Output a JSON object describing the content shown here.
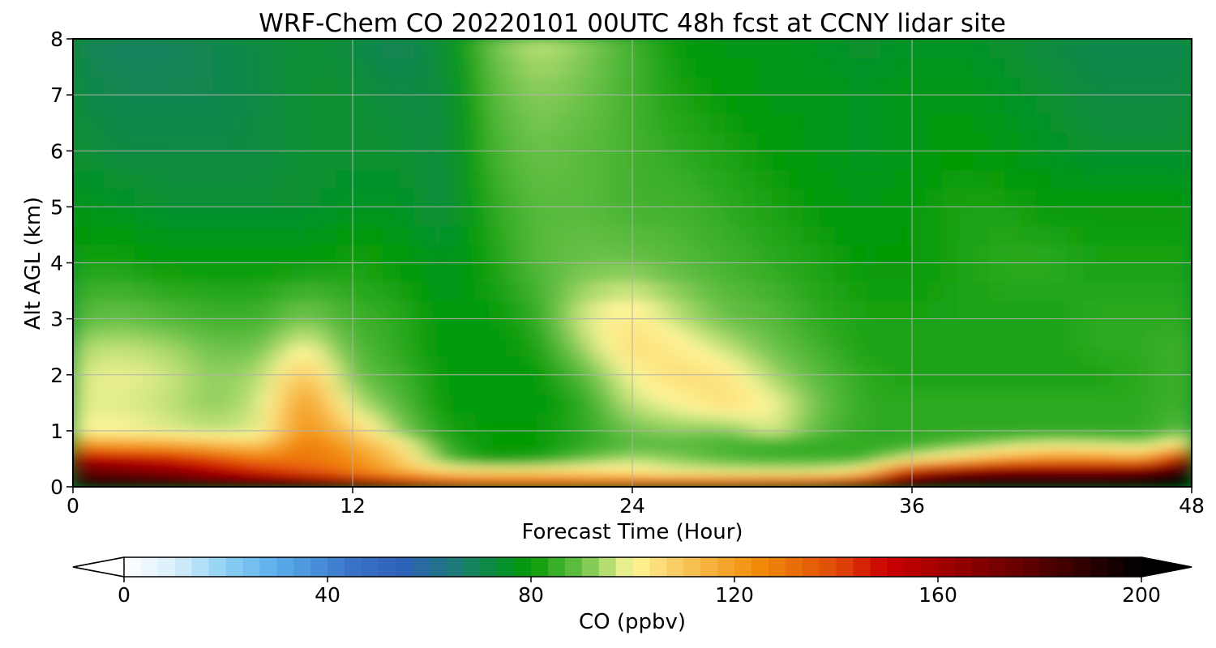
{
  "chart_data": {
    "type": "heatmap",
    "title": "WRF-Chem CO  20220101 00UTC 48h fcst at CCNY lidar site",
    "xlabel": "Forecast Time (Hour)",
    "ylabel": "Alt AGL (km)",
    "xlim": [
      0,
      48
    ],
    "ylim": [
      0,
      8
    ],
    "xticks": [
      0,
      12,
      24,
      36,
      48
    ],
    "yticks": [
      0,
      1,
      2,
      3,
      4,
      5,
      6,
      7,
      8
    ],
    "grid": true,
    "x": [
      0,
      2,
      4,
      6,
      8,
      10,
      12,
      14,
      16,
      18,
      20,
      22,
      24,
      26,
      28,
      30,
      32,
      34,
      36,
      38,
      40,
      42,
      44,
      46,
      48
    ],
    "y": [
      0,
      0.25,
      0.5,
      0.75,
      1,
      1.5,
      2,
      2.5,
      3,
      4,
      5,
      6,
      7,
      8
    ],
    "values": [
      [
        200,
        200,
        200,
        200,
        200,
        200,
        190,
        175,
        160,
        150,
        150,
        150,
        155,
        160,
        160,
        165,
        170,
        190,
        200,
        200,
        200,
        200,
        200,
        200,
        200
      ],
      [
        180,
        175,
        170,
        160,
        150,
        140,
        130,
        118,
        110,
        110,
        110,
        108,
        105,
        100,
        100,
        100,
        100,
        110,
        160,
        175,
        180,
        180,
        180,
        185,
        200
      ],
      [
        160,
        155,
        150,
        140,
        130,
        130,
        125,
        110,
        88,
        80,
        82,
        90,
        95,
        92,
        88,
        86,
        86,
        86,
        100,
        110,
        120,
        125,
        125,
        120,
        165
      ],
      [
        125,
        120,
        120,
        115,
        110,
        130,
        118,
        105,
        84,
        80,
        80,
        84,
        88,
        88,
        86,
        85,
        84,
        84,
        85,
        90,
        95,
        100,
        98,
        95,
        110
      ],
      [
        100,
        100,
        98,
        96,
        98,
        125,
        110,
        92,
        82,
        80,
        80,
        84,
        90,
        92,
        90,
        98,
        88,
        84,
        84,
        84,
        84,
        84,
        84,
        84,
        90
      ],
      [
        98,
        98,
        96,
        92,
        96,
        122,
        96,
        88,
        80,
        79,
        79,
        84,
        96,
        100,
        106,
        100,
        90,
        84,
        84,
        84,
        84,
        84,
        84,
        84,
        86
      ],
      [
        97,
        99,
        97,
        92,
        94,
        112,
        90,
        86,
        80,
        79,
        80,
        88,
        100,
        106,
        104,
        94,
        88,
        84,
        82,
        82,
        82,
        82,
        82,
        84,
        86
      ],
      [
        94,
        96,
        94,
        90,
        90,
        100,
        88,
        84,
        79,
        79,
        82,
        94,
        106,
        102,
        96,
        90,
        86,
        82,
        82,
        82,
        82,
        82,
        84,
        84,
        86
      ],
      [
        88,
        90,
        88,
        86,
        86,
        92,
        86,
        84,
        79,
        80,
        84,
        98,
        104,
        96,
        90,
        88,
        84,
        82,
        82,
        82,
        82,
        82,
        84,
        84,
        84
      ],
      [
        82,
        82,
        80,
        80,
        80,
        80,
        82,
        80,
        76,
        82,
        88,
        90,
        90,
        88,
        86,
        84,
        82,
        80,
        80,
        82,
        84,
        84,
        82,
        82,
        82
      ],
      [
        78,
        76,
        74,
        74,
        74,
        74,
        76,
        76,
        72,
        84,
        88,
        88,
        86,
        86,
        84,
        82,
        80,
        78,
        80,
        82,
        82,
        80,
        80,
        80,
        80
      ],
      [
        74,
        72,
        72,
        72,
        72,
        74,
        74,
        74,
        72,
        86,
        90,
        88,
        86,
        84,
        82,
        80,
        78,
        76,
        78,
        80,
        78,
        76,
        74,
        74,
        74
      ],
      [
        72,
        70,
        70,
        70,
        72,
        74,
        74,
        72,
        72,
        88,
        92,
        90,
        86,
        82,
        80,
        78,
        78,
        76,
        78,
        78,
        76,
        74,
        72,
        72,
        72
      ],
      [
        70,
        68,
        68,
        70,
        72,
        74,
        72,
        68,
        74,
        90,
        96,
        92,
        86,
        80,
        78,
        78,
        76,
        74,
        76,
        76,
        74,
        72,
        70,
        70,
        70
      ]
    ],
    "colorbar": {
      "label": "CO  (ppbv)",
      "min": 0,
      "max": 200,
      "ticks": [
        0,
        40,
        80,
        120,
        160,
        200
      ],
      "extend": "both",
      "stops": [
        {
          "v": 0,
          "c": "#ffffff"
        },
        {
          "v": 10,
          "c": "#d8eefb"
        },
        {
          "v": 20,
          "c": "#8ed0f5"
        },
        {
          "v": 30,
          "c": "#5aaeea"
        },
        {
          "v": 45,
          "c": "#3a72c8"
        },
        {
          "v": 55,
          "c": "#2e62b8"
        },
        {
          "v": 65,
          "c": "#1e7a78"
        },
        {
          "v": 75,
          "c": "#06922a"
        },
        {
          "v": 80,
          "c": "#059a05"
        },
        {
          "v": 90,
          "c": "#6cc24a"
        },
        {
          "v": 100,
          "c": "#fff79a"
        },
        {
          "v": 110,
          "c": "#f9c65a"
        },
        {
          "v": 125,
          "c": "#f28a08"
        },
        {
          "v": 140,
          "c": "#e04a08"
        },
        {
          "v": 150,
          "c": "#cc0000"
        },
        {
          "v": 175,
          "c": "#6a0000"
        },
        {
          "v": 200,
          "c": "#000000"
        }
      ]
    }
  }
}
